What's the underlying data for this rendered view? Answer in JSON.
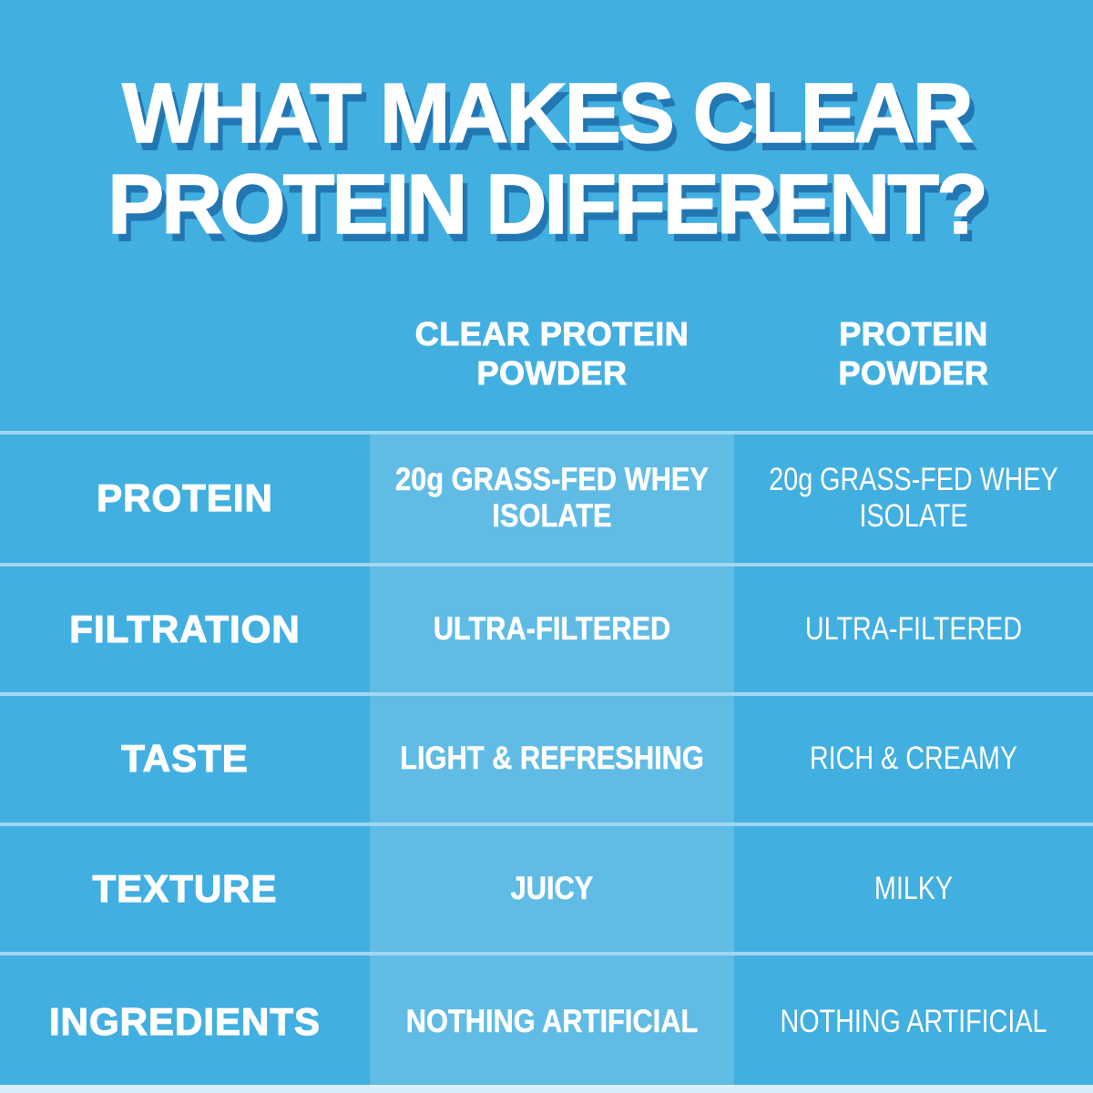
{
  "title": {
    "line1": "WHAT MAKES CLEAR",
    "line2": "PROTEIN DIFFERENT?"
  },
  "columns": {
    "clear": "CLEAR PROTEIN POWDER",
    "regular": "PROTEIN POWDER"
  },
  "rows": [
    {
      "label": "PROTEIN",
      "clear": "20g GRASS-FED WHEY ISOLATE",
      "regular": "20g GRASS-FED WHEY ISOLATE"
    },
    {
      "label": "FILTRATION",
      "clear": "ULTRA-FILTERED",
      "regular": "ULTRA-FILTERED"
    },
    {
      "label": "TASTE",
      "clear": "LIGHT & REFRESHING",
      "regular": "RICH & CREAMY"
    },
    {
      "label": "TEXTURE",
      "clear": "JUICY",
      "regular": "MILKY"
    },
    {
      "label": "INGREDIENTS",
      "clear": "NOTHING ARTIFICIAL",
      "regular": "NOTHING ARTIFICIAL"
    }
  ],
  "colors": {
    "background": "#42AFE1",
    "highlight_column": "#5FBFE9",
    "separator_line": "#A9DCF2",
    "title_text": "#FFFFFF",
    "title_shadow": "#2277B3",
    "body_text": "#FFFFFF",
    "bottom_strip": "#E5F4FB"
  },
  "chart_data": {
    "type": "table",
    "title": "WHAT MAKES CLEAR PROTEIN DIFFERENT?",
    "columns": [
      "",
      "CLEAR PROTEIN POWDER",
      "PROTEIN POWDER"
    ],
    "rows": [
      [
        "PROTEIN",
        "20g GRASS-FED WHEY ISOLATE",
        "20g GRASS-FED WHEY ISOLATE"
      ],
      [
        "FILTRATION",
        "ULTRA-FILTERED",
        "ULTRA-FILTERED"
      ],
      [
        "TASTE",
        "LIGHT & REFRESHING",
        "RICH & CREAMY"
      ],
      [
        "TEXTURE",
        "JUICY",
        "MILKY"
      ],
      [
        "INGREDIENTS",
        "NOTHING ARTIFICIAL",
        "NOTHING ARTIFICIAL"
      ]
    ],
    "layout_hints": {
      "highlighted_column": "CLEAR PROTEIN POWDER",
      "row_separators": true,
      "background": "solid blue"
    }
  }
}
